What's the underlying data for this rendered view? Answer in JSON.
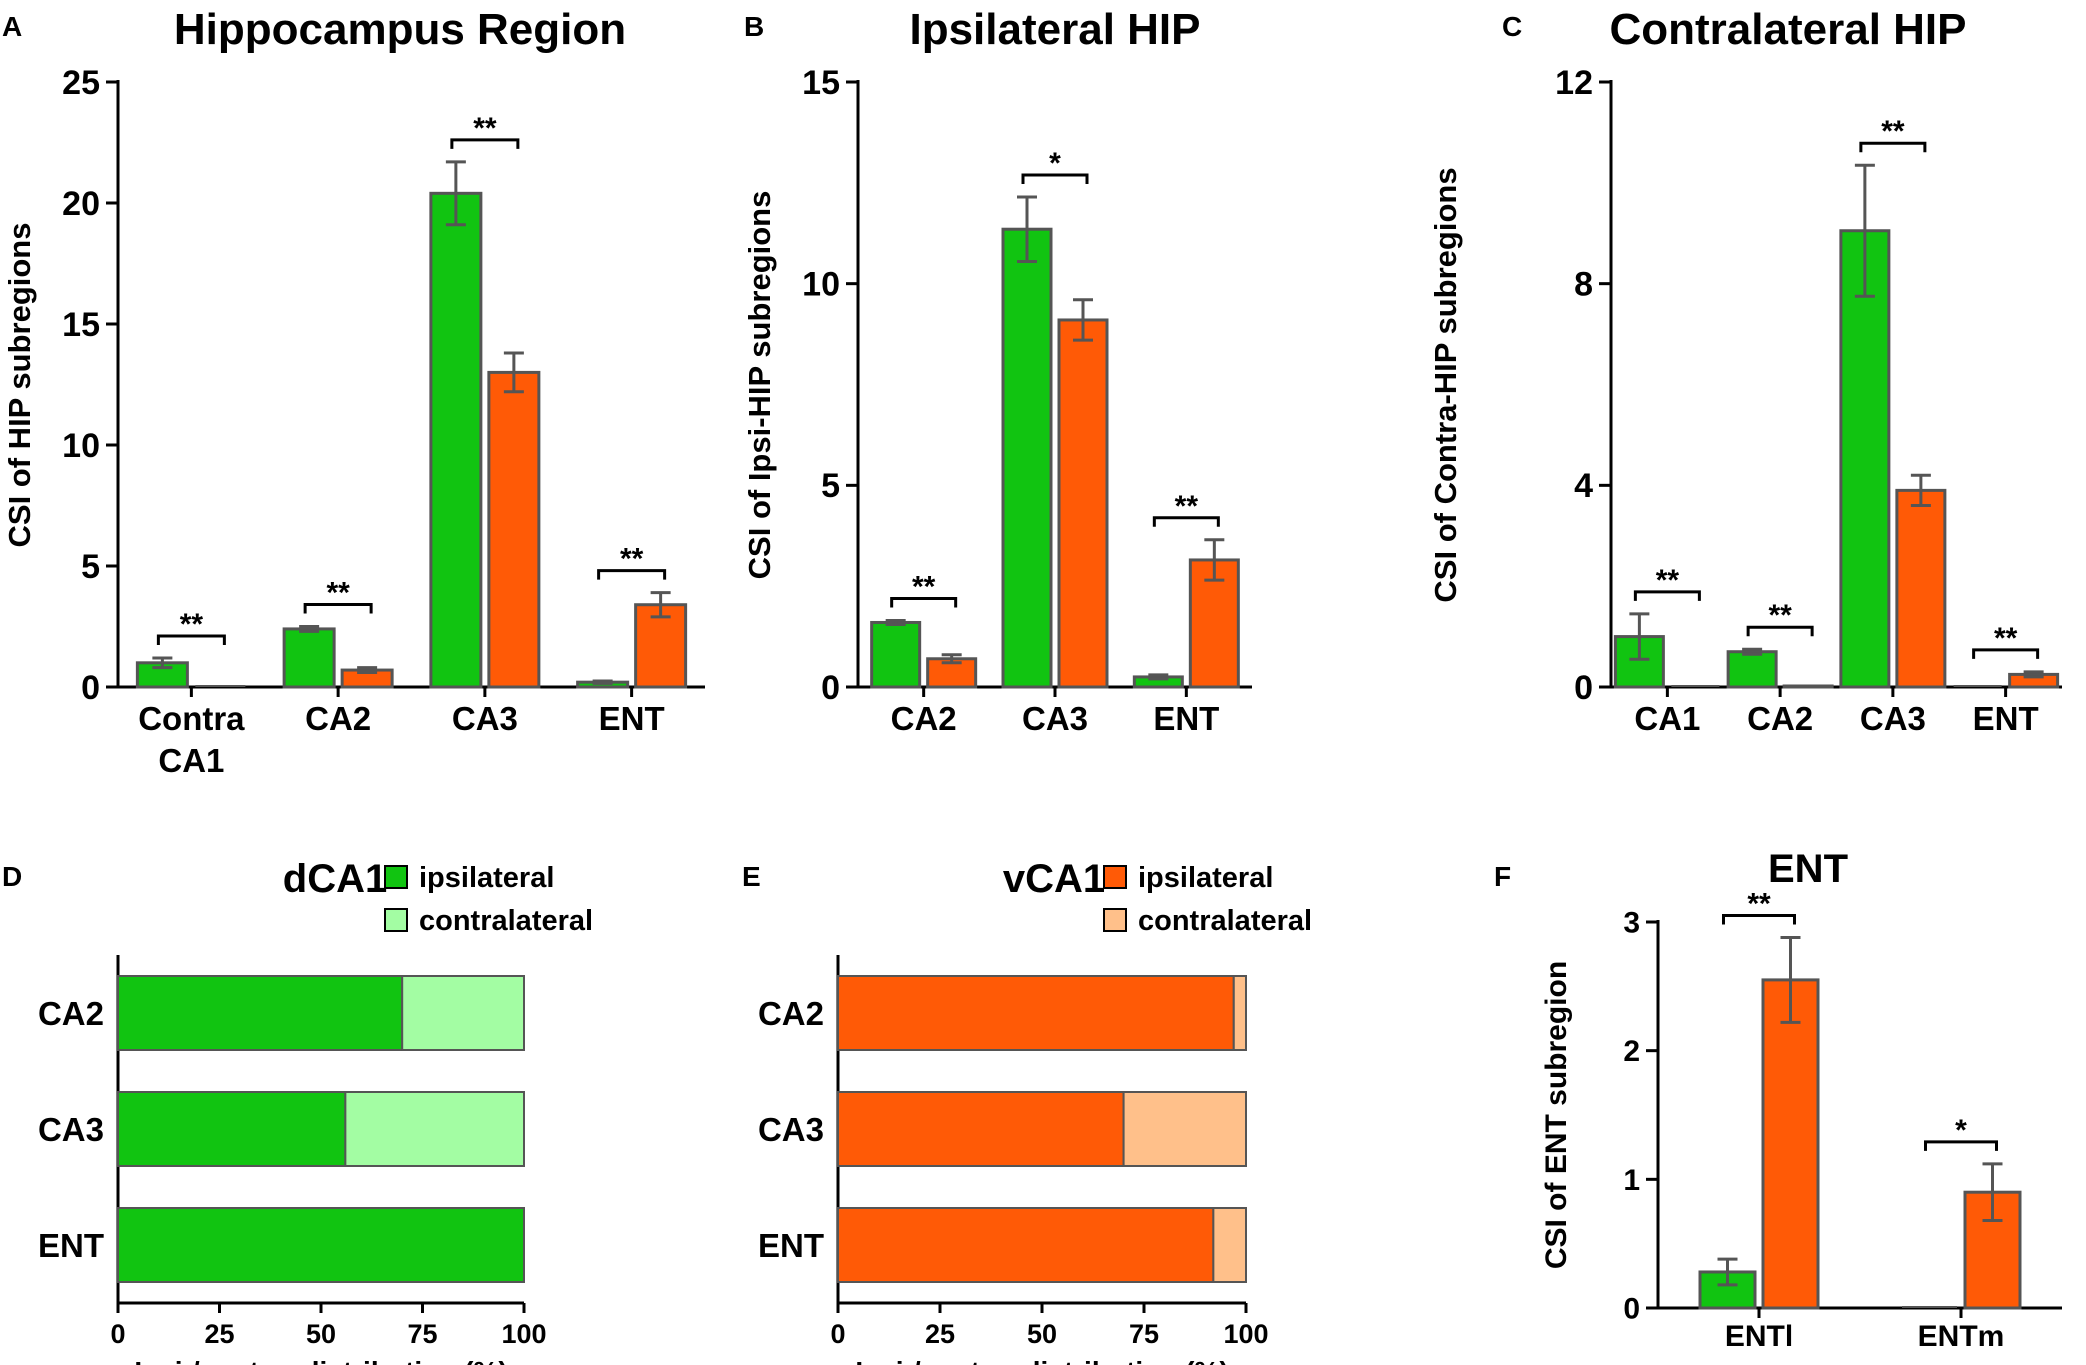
{
  "colors": {
    "green": "#11c411",
    "orange": "#ff5a06",
    "light_green": "#a3fda3",
    "light_orange": "#ffc08a",
    "outline": "#555555",
    "error_bar": "#555555",
    "axis": "#000000"
  },
  "chart_data": [
    {
      "panel": "A",
      "type": "bar",
      "title": "Hippocampus Region",
      "ylabel": "CSI of HIP subregions",
      "xlabel": "",
      "ylim": [
        0,
        25
      ],
      "yticks": [
        "0",
        "5",
        "10",
        "15",
        "20",
        "25"
      ],
      "categories": [
        [
          "Contra",
          "CA1"
        ],
        [
          "CA2"
        ],
        [
          "CA3"
        ],
        [
          "ENT"
        ]
      ],
      "series": [
        {
          "name": "dCA1",
          "color": "green",
          "values": [
            1.0,
            2.4,
            20.4,
            0.2
          ],
          "errors": [
            0.2,
            0.1,
            1.3,
            0.05
          ]
        },
        {
          "name": "vCA1",
          "color": "orange",
          "values": [
            0,
            0.7,
            13.0,
            3.4
          ],
          "errors": [
            0,
            0.1,
            0.8,
            0.5
          ]
        }
      ],
      "significance": [
        "**",
        "**",
        "**",
        "**"
      ]
    },
    {
      "panel": "B",
      "type": "bar",
      "title": "Ipsilateral HIP",
      "ylabel": "CSI of Ipsi-HIP subregions",
      "xlabel": "",
      "ylim": [
        0,
        15
      ],
      "yticks": [
        "0",
        "5",
        "10",
        "15"
      ],
      "categories": [
        [
          "CA2"
        ],
        [
          "CA3"
        ],
        [
          "ENT"
        ]
      ],
      "series": [
        {
          "name": "dCA1",
          "color": "green",
          "values": [
            1.6,
            11.35,
            0.25
          ],
          "errors": [
            0.05,
            0.8,
            0.05
          ]
        },
        {
          "name": "vCA1",
          "color": "orange",
          "values": [
            0.7,
            9.1,
            3.15
          ],
          "errors": [
            0.1,
            0.5,
            0.5
          ]
        }
      ],
      "significance": [
        "**",
        "*",
        "**"
      ]
    },
    {
      "panel": "C",
      "type": "bar",
      "title": "Contralateral HIP",
      "ylabel": "CSI of Contra-HIP subregions",
      "xlabel": "",
      "ylim": [
        0,
        12
      ],
      "yticks": [
        "0",
        "4",
        "8",
        "12"
      ],
      "categories": [
        [
          "CA1"
        ],
        [
          "CA2"
        ],
        [
          "CA3"
        ],
        [
          "ENT"
        ]
      ],
      "series": [
        {
          "name": "dCA1",
          "color": "green",
          "values": [
            1.0,
            0.7,
            9.05,
            0.0
          ],
          "errors": [
            0.45,
            0.05,
            1.3,
            0
          ]
        },
        {
          "name": "vCA1",
          "color": "orange",
          "values": [
            0,
            0.02,
            3.9,
            0.25
          ],
          "errors": [
            0,
            0,
            0.3,
            0.05
          ]
        }
      ],
      "significance": [
        "**",
        "**",
        "**",
        "**"
      ]
    },
    {
      "panel": "D",
      "type": "bar",
      "orientation": "horizontal-stacked",
      "title": "dCA1",
      "xlabel": "Ipsi-/contra- distribution (%)",
      "xlim": [
        0,
        100
      ],
      "xticks": [
        "0",
        "25",
        "50",
        "75",
        "100"
      ],
      "categories": [
        "CA2",
        "CA3",
        "ENT"
      ],
      "series": [
        {
          "name": "ipsilateral",
          "color": "green",
          "values": [
            70,
            56,
            100
          ]
        },
        {
          "name": "contralateral",
          "color": "light_green",
          "values": [
            30,
            44,
            0
          ]
        }
      ],
      "legend": [
        "ipsilateral",
        "contralateral"
      ]
    },
    {
      "panel": "E",
      "type": "bar",
      "orientation": "horizontal-stacked",
      "title": "vCA1",
      "xlabel": "Ipsi-/contra- distribution (%)",
      "xlim": [
        0,
        100
      ],
      "xticks": [
        "0",
        "25",
        "50",
        "75",
        "100"
      ],
      "categories": [
        "CA2",
        "CA3",
        "ENT"
      ],
      "series": [
        {
          "name": "ipsilateral",
          "color": "orange",
          "values": [
            97,
            70,
            92
          ]
        },
        {
          "name": "contralateral",
          "color": "light_orange",
          "values": [
            3,
            30,
            8
          ]
        }
      ],
      "legend": [
        "ipsilateral",
        "contralateral"
      ]
    },
    {
      "panel": "F",
      "type": "bar",
      "title": "ENT",
      "ylabel": "CSI of ENT subregion",
      "xlabel": "",
      "ylim": [
        0,
        3
      ],
      "yticks": [
        "0",
        "1",
        "2",
        "3"
      ],
      "categories": [
        [
          "ENTl"
        ],
        [
          "ENTm"
        ]
      ],
      "series": [
        {
          "name": "dCA1",
          "color": "green",
          "values": [
            0.28,
            0
          ],
          "errors": [
            0.1,
            0
          ]
        },
        {
          "name": "vCA1",
          "color": "orange",
          "values": [
            2.55,
            0.9
          ],
          "errors": [
            0.33,
            0.22
          ]
        }
      ],
      "significance": [
        "**",
        "*"
      ]
    }
  ]
}
